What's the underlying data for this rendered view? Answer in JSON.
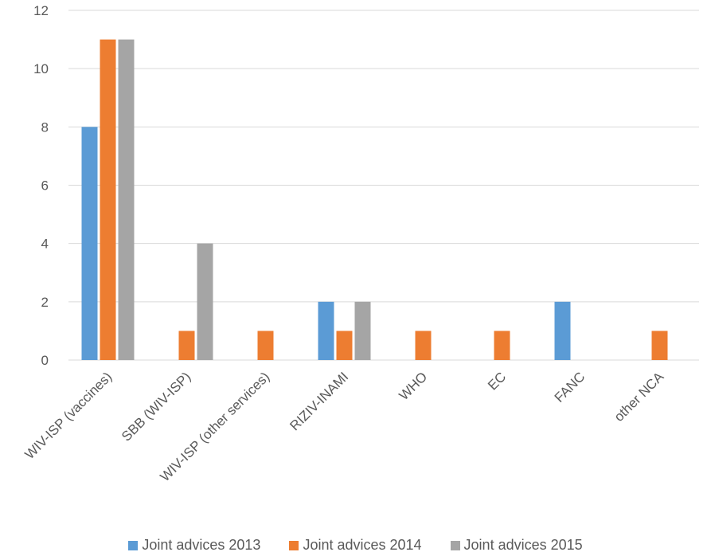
{
  "chart_data": {
    "type": "bar",
    "categories": [
      "WIV-ISP (vaccines)",
      "SBB (WIV-ISP)",
      "WIV-ISP (other services)",
      "RIZIV-INAMI",
      "WHO",
      "EC",
      "FANC",
      "other NCA"
    ],
    "series": [
      {
        "name": "Joint advices 2013",
        "color": "#5B9BD5",
        "values": [
          8,
          0,
          0,
          2,
          0,
          0,
          2,
          0
        ]
      },
      {
        "name": "Joint advices 2014",
        "color": "#ED7D31",
        "values": [
          11,
          1,
          1,
          1,
          1,
          1,
          0,
          1
        ]
      },
      {
        "name": "Joint advices 2015",
        "color": "#A5A5A5",
        "values": [
          11,
          4,
          0,
          2,
          0,
          0,
          0,
          0
        ]
      }
    ],
    "yticks": [
      0,
      2,
      4,
      6,
      8,
      10,
      12
    ],
    "ylim": [
      0,
      12
    ],
    "grid": true,
    "legend_position": "bottom"
  }
}
